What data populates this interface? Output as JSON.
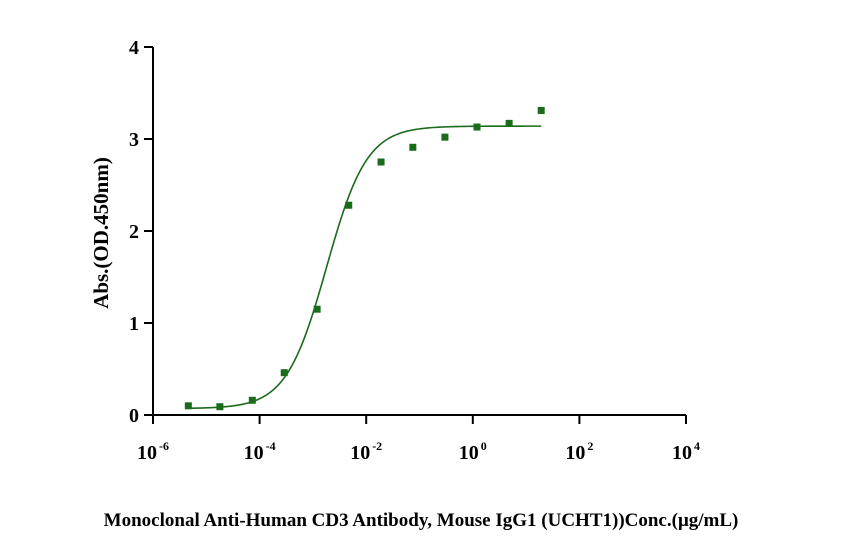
{
  "chart_data": {
    "type": "scatter",
    "title": "",
    "xlabel": "Monoclonal Anti-Human CD3 Antibody, Mouse IgG1 (UCHT1))Conc.(μg/mL)",
    "ylabel": "Abs.(OD.450nm)",
    "x_scale": "log10",
    "xlim": [
      1e-06,
      10000
    ],
    "ylim": [
      0,
      4
    ],
    "x_ticks": [
      {
        "base": "10",
        "exp": "-6"
      },
      {
        "base": "10",
        "exp": "-4"
      },
      {
        "base": "10",
        "exp": "-2"
      },
      {
        "base": "10",
        "exp": "0"
      },
      {
        "base": "10",
        "exp": "2"
      },
      {
        "base": "10",
        "exp": "4"
      }
    ],
    "y_ticks": [
      "0",
      "1",
      "2",
      "3",
      "4"
    ],
    "x_tick_values": [
      1e-06,
      0.0001,
      0.01,
      1,
      100,
      10000
    ],
    "y_tick_values": [
      0,
      1,
      2,
      3,
      4
    ],
    "grid": false,
    "legend": "none",
    "colors": {
      "series": "#1a6b1a",
      "axis": "#000000"
    },
    "series": [
      {
        "x": [
          4.6e-06,
          1.8e-05,
          7.3e-05,
          0.00029,
          0.0012,
          0.0047,
          0.019,
          0.075,
          0.3,
          1.2,
          4.8,
          19.2
        ],
        "y": [
          0.1,
          0.09,
          0.16,
          0.46,
          1.15,
          2.28,
          2.75,
          2.91,
          3.02,
          3.13,
          3.17,
          3.31
        ]
      }
    ],
    "fit_curve": {
      "model": "4PL",
      "x_range": [
        4.6e-06,
        19.2
      ],
      "bottom": 0.07,
      "top": 3.14,
      "ec50": 0.0018,
      "hill": 1.15
    }
  }
}
